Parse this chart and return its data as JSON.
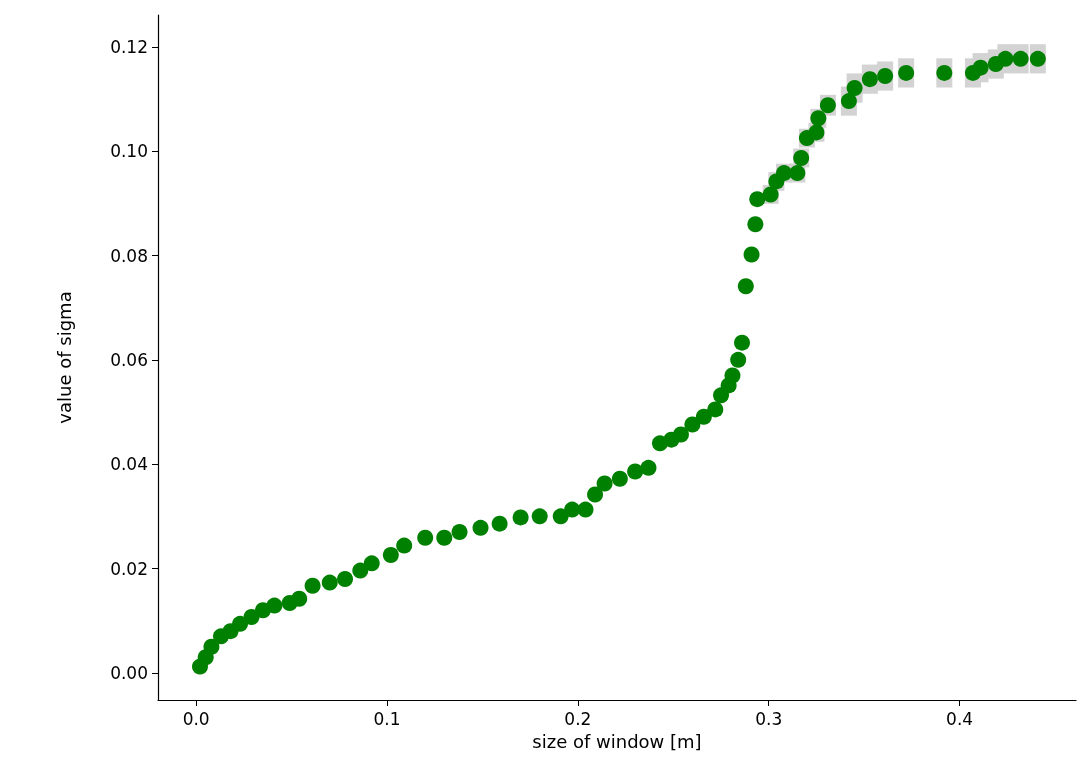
{
  "chart_data": {
    "type": "scatter",
    "xlabel": "size of window [m]",
    "ylabel": "value of sigma",
    "x": [
      0.002,
      0.005,
      0.008,
      0.013,
      0.018,
      0.023,
      0.029,
      0.035,
      0.041,
      0.049,
      0.054,
      0.061,
      0.07,
      0.078,
      0.086,
      0.092,
      0.102,
      0.109,
      0.12,
      0.13,
      0.138,
      0.149,
      0.159,
      0.17,
      0.18,
      0.191,
      0.197,
      0.204,
      0.209,
      0.214,
      0.222,
      0.23,
      0.237,
      0.243,
      0.249,
      0.254,
      0.26,
      0.266,
      0.272,
      0.275,
      0.279,
      0.281,
      0.284,
      0.286,
      0.288,
      0.291,
      0.293,
      0.294,
      0.301,
      0.304,
      0.308,
      0.315,
      0.317,
      0.32,
      0.325,
      0.326,
      0.331,
      0.342,
      0.345,
      0.353,
      0.361,
      0.372,
      0.392,
      0.407,
      0.411,
      0.419,
      0.424,
      0.432,
      0.441
    ],
    "series": [
      {
        "color": "#008000",
        "values": [
          0.0012,
          0.003,
          0.005,
          0.007,
          0.008,
          0.0094,
          0.0107,
          0.012,
          0.0129,
          0.0134,
          0.0142,
          0.0167,
          0.0173,
          0.018,
          0.0196,
          0.021,
          0.0226,
          0.0244,
          0.0259,
          0.0259,
          0.027,
          0.0278,
          0.0286,
          0.0298,
          0.03,
          0.03,
          0.0313,
          0.0313,
          0.0342,
          0.0363,
          0.0372,
          0.0386,
          0.0393,
          0.044,
          0.0447,
          0.0457,
          0.0476,
          0.0491,
          0.0505,
          0.0532,
          0.0551,
          0.057,
          0.06,
          0.0633,
          0.0741,
          0.0802,
          0.086,
          0.0908,
          0.0917,
          0.0942,
          0.0958,
          0.0958,
          0.0987,
          0.1025,
          0.1036,
          0.1063,
          0.1088,
          0.1096,
          0.1121,
          0.1138,
          0.1144,
          0.115,
          0.115,
          0.115,
          0.116,
          0.1167,
          0.1177,
          0.1177,
          0.1177
        ],
        "errors": [
          null,
          null,
          null,
          null,
          null,
          null,
          null,
          null,
          null,
          null,
          null,
          null,
          null,
          null,
          null,
          null,
          null,
          null,
          null,
          null,
          null,
          null,
          null,
          null,
          null,
          null,
          null,
          null,
          null,
          null,
          null,
          null,
          null,
          null,
          null,
          null,
          null,
          null,
          null,
          null,
          null,
          null,
          null,
          null,
          null,
          null,
          null,
          null,
          0.0018,
          0.0018,
          0.0018,
          0.0018,
          0.0018,
          0.0018,
          0.0018,
          0.0018,
          0.002,
          0.0028,
          0.0028,
          0.0028,
          0.0028,
          0.0028,
          0.0028,
          0.0028,
          0.0028,
          0.0028,
          0.0028,
          0.0028,
          0.0028
        ]
      }
    ],
    "xlim": [
      -0.02,
      0.461
    ],
    "xticks": [
      {
        "value": 0,
        "label": "0.0"
      },
      {
        "value": 0.1,
        "label": "0.1"
      },
      {
        "value": 0.2,
        "label": "0.2"
      },
      {
        "value": 0.3,
        "label": "0.3"
      },
      {
        "value": 0.4,
        "label": "0.4"
      }
    ],
    "ylim": [
      -0.0052,
      0.1261
    ],
    "yticks": [
      {
        "value": 0,
        "label": "0.00"
      },
      {
        "value": 0.02,
        "label": "0.02"
      },
      {
        "value": 0.04,
        "label": "0.04"
      },
      {
        "value": 0.06,
        "label": "0.06"
      },
      {
        "value": 0.08,
        "label": "0.08"
      },
      {
        "value": 0.1,
        "label": "0.10"
      },
      {
        "value": 0.12,
        "label": "0.12"
      }
    ],
    "marker": "circle"
  }
}
